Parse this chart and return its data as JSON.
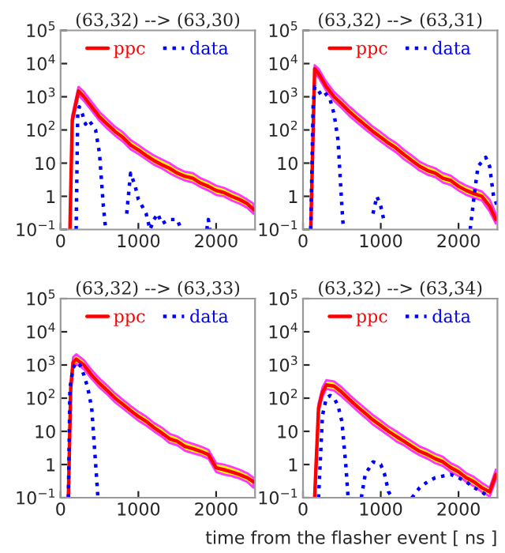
{
  "chart_data": [
    {
      "type": "line",
      "title": "(63,32) --> (63,30)",
      "log": "y",
      "xlim": [
        0,
        2500
      ],
      "ylim": [
        0.1,
        100000
      ],
      "xticks": [
        0,
        1000,
        2000
      ],
      "yticks": [
        {
          "value": 0.1,
          "label": "10$^{−1}$"
        },
        {
          "value": 1,
          "label": "1"
        },
        {
          "value": 10,
          "label": "10"
        },
        {
          "value": 100,
          "label": "10$^{2}$"
        },
        {
          "value": 1000,
          "label": "10$^{3}$"
        },
        {
          "value": 10000,
          "label": "10$^{4}$"
        },
        {
          "value": 100000,
          "label": "10$^{5}$"
        }
      ],
      "legend": "top",
      "grid": false,
      "series": [
        {
          "name": "ppc",
          "color": "#ff0000",
          "line_style": "solid",
          "x": [
            120,
            150,
            230,
            300,
            400,
            500,
            600,
            700,
            800,
            900,
            1000,
            1100,
            1200,
            1300,
            1400,
            1500,
            1600,
            1700,
            1800,
            1900,
            2000,
            2100,
            2200,
            2300,
            2400,
            2480
          ],
          "values": [
            0.1,
            200,
            1500,
            1000,
            500,
            250,
            150,
            90,
            60,
            35,
            25,
            17,
            12,
            9,
            7,
            5,
            4,
            3.5,
            2.5,
            2,
            1.5,
            1.3,
            1,
            0.8,
            0.6,
            0.4
          ],
          "upper": [
            0.1,
            280,
            2000,
            1400,
            700,
            350,
            210,
            125,
            85,
            50,
            35,
            24,
            17,
            13,
            10,
            7,
            5.5,
            5,
            3.5,
            2.8,
            2.1,
            1.8,
            1.4,
            1.1,
            0.8,
            0.6
          ],
          "lower": [
            0.1,
            150,
            1100,
            750,
            380,
            190,
            110,
            68,
            45,
            26,
            19,
            13,
            9,
            7,
            5,
            3.8,
            3,
            2.6,
            1.9,
            1.5,
            1.1,
            1,
            0.75,
            0.6,
            0.45,
            0.3
          ]
        },
        {
          "name": "data",
          "color": "#0000ff",
          "line_style": "dotted",
          "x": [
            200,
            220,
            240,
            280,
            320,
            360,
            400,
            450,
            500,
            550,
            580,
            null,
            850,
            900,
            960,
            1000,
            1050,
            1100,
            1150,
            1200,
            1250,
            1300,
            1400,
            1500,
            1550,
            null,
            1880,
            1900,
            1920
          ],
          "values": [
            0.1,
            300,
            500,
            300,
            150,
            200,
            150,
            100,
            20,
            0.5,
            0.1,
            null,
            0.3,
            5,
            2,
            0.8,
            0.5,
            0.3,
            0.1,
            0.2,
            0.3,
            0.15,
            0.2,
            0.2,
            0.1,
            null,
            0.1,
            0.2,
            0.1
          ]
        }
      ]
    },
    {
      "type": "line",
      "title": "(63,32) --> (63,31)",
      "log": "y",
      "xlim": [
        0,
        2500
      ],
      "ylim": [
        0.1,
        100000
      ],
      "xticks": [
        0,
        1000,
        2000
      ],
      "yticks": [
        {
          "value": 0.1,
          "label": "10$^{−1}$"
        },
        {
          "value": 1,
          "label": "1"
        },
        {
          "value": 10,
          "label": "10"
        },
        {
          "value": 100,
          "label": "10$^{2}$"
        },
        {
          "value": 1000,
          "label": "10$^{3}$"
        },
        {
          "value": 10000,
          "label": "10$^{4}$"
        },
        {
          "value": 100000,
          "label": "10$^{5}$"
        }
      ],
      "legend": "top",
      "grid": false,
      "series": [
        {
          "name": "ppc",
          "color": "#ff0000",
          "line_style": "solid",
          "x": [
            100,
            150,
            200,
            300,
            400,
            500,
            600,
            700,
            800,
            900,
            1000,
            1100,
            1200,
            1300,
            1400,
            1500,
            1600,
            1700,
            1800,
            1900,
            2000,
            2100,
            2200,
            2300,
            2400,
            2480
          ],
          "values": [
            0.1,
            7000,
            5000,
            2000,
            1000,
            600,
            350,
            220,
            140,
            90,
            60,
            40,
            28,
            18,
            12,
            8,
            6,
            5,
            3.5,
            3,
            2,
            1.5,
            1.2,
            1,
            0.5,
            0.2
          ],
          "upper": [
            0.1,
            9000,
            7000,
            2800,
            1400,
            850,
            500,
            310,
            200,
            125,
            85,
            56,
            40,
            25,
            17,
            11,
            8.5,
            7,
            5,
            4.2,
            2.8,
            2.1,
            1.7,
            1.4,
            0.8,
            0.3
          ],
          "lower": [
            0.1,
            5000,
            3800,
            1500,
            750,
            450,
            260,
            165,
            105,
            68,
            45,
            30,
            21,
            13,
            9,
            6,
            4.5,
            3.8,
            2.6,
            2.2,
            1.5,
            1.1,
            0.9,
            0.75,
            0.35,
            0.15
          ]
        },
        {
          "name": "data",
          "color": "#0000ff",
          "line_style": "dotted",
          "x": [
            100,
            130,
            150,
            200,
            250,
            300,
            350,
            400,
            450,
            500,
            520,
            null,
            900,
            950,
            1000,
            1050,
            null,
            2150,
            2200,
            2250,
            2350,
            2400,
            2450,
            2500
          ],
          "values": [
            0.1,
            500,
            2000,
            1500,
            1000,
            1200,
            800,
            300,
            50,
            0.5,
            0.1,
            null,
            0.3,
            1,
            0.5,
            0.15,
            null,
            0.1,
            1,
            8,
            15,
            8,
            1,
            0.5
          ]
        }
      ]
    },
    {
      "type": "line",
      "title": "(63,32) --> (63,33)",
      "log": "y",
      "xlim": [
        0,
        2500
      ],
      "ylim": [
        0.1,
        100000
      ],
      "xticks": [
        0,
        1000,
        2000
      ],
      "yticks": [
        {
          "value": 0.1,
          "label": "10$^{−1}$"
        },
        {
          "value": 1,
          "label": "1"
        },
        {
          "value": 10,
          "label": "10"
        },
        {
          "value": 100,
          "label": "10$^{2}$"
        },
        {
          "value": 1000,
          "label": "10$^{3}$"
        },
        {
          "value": 10000,
          "label": "10$^{4}$"
        },
        {
          "value": 100000,
          "label": "10$^{5}$"
        }
      ],
      "legend": "top",
      "grid": false,
      "series": [
        {
          "name": "ppc",
          "color": "#ff0000",
          "line_style": "solid",
          "x": [
            100,
            130,
            160,
            200,
            300,
            400,
            500,
            600,
            700,
            800,
            900,
            1000,
            1100,
            1200,
            1300,
            1400,
            1500,
            1600,
            1700,
            1800,
            1900,
            2000,
            2100,
            2200,
            2300,
            2400,
            2480
          ],
          "values": [
            0.1,
            200,
            1200,
            1500,
            1000,
            500,
            280,
            170,
            100,
            65,
            42,
            28,
            20,
            13,
            9,
            6,
            5,
            3.5,
            3,
            2.5,
            2,
            0.8,
            0.7,
            0.6,
            0.5,
            0.4,
            0.3
          ],
          "upper": [
            0.1,
            280,
            1700,
            2100,
            1400,
            700,
            390,
            240,
            140,
            90,
            58,
            39,
            28,
            18,
            13,
            8.5,
            7,
            5,
            4.2,
            3.5,
            2.8,
            1.1,
            1,
            0.85,
            0.7,
            0.55,
            0.4
          ],
          "lower": [
            0.1,
            150,
            900,
            1100,
            750,
            380,
            210,
            130,
            75,
            49,
            32,
            21,
            15,
            10,
            7,
            4.5,
            3.8,
            2.6,
            2.2,
            1.9,
            1.5,
            0.6,
            0.5,
            0.45,
            0.38,
            0.3,
            0.2
          ]
        },
        {
          "name": "data",
          "color": "#0000ff",
          "line_style": "dotted",
          "x": [
            100,
            120,
            160,
            200,
            250,
            300,
            350,
            400,
            430,
            460,
            480
          ],
          "values": [
            0.1,
            200,
            800,
            1200,
            1000,
            500,
            200,
            50,
            5,
            0.5,
            0.1
          ]
        }
      ],
      "xlabel": "time from the flasher event [ ns ]"
    },
    {
      "type": "line",
      "title": "(63,32) --> (63,34)",
      "log": "y",
      "xlim": [
        0,
        2500
      ],
      "ylim": [
        0.1,
        100000
      ],
      "xticks": [
        0,
        1000,
        2000
      ],
      "yticks": [
        {
          "value": 0.1,
          "label": "10$^{−1}$"
        },
        {
          "value": 1,
          "label": "1"
        },
        {
          "value": 10,
          "label": "10"
        },
        {
          "value": 100,
          "label": "10$^{2}$"
        },
        {
          "value": 1000,
          "label": "10$^{3}$"
        },
        {
          "value": 10000,
          "label": "10$^{4}$"
        },
        {
          "value": 100000,
          "label": "10$^{5}$"
        }
      ],
      "legend": "top",
      "grid": false,
      "series": [
        {
          "name": "ppc",
          "color": "#ff0000",
          "line_style": "solid",
          "x": [
            150,
            200,
            250,
            300,
            400,
            500,
            600,
            700,
            800,
            900,
            1000,
            1100,
            1200,
            1300,
            1400,
            1500,
            1600,
            1700,
            1800,
            1900,
            2000,
            2100,
            2200,
            2300,
            2400,
            2480
          ],
          "values": [
            0.1,
            50,
            150,
            250,
            230,
            150,
            90,
            55,
            35,
            22,
            15,
            10,
            7,
            5,
            3.5,
            2.5,
            2,
            1.5,
            1.2,
            0.8,
            0.6,
            0.4,
            0.3,
            0.2,
            0.15,
            0.5
          ],
          "upper": [
            0.1,
            70,
            210,
            350,
            320,
            210,
            125,
            77,
            49,
            31,
            21,
            14,
            10,
            7,
            5,
            3.5,
            2.8,
            2.1,
            1.7,
            1.1,
            0.85,
            0.55,
            0.42,
            0.28,
            0.2,
            0.7
          ],
          "lower": [
            0.1,
            38,
            110,
            190,
            170,
            110,
            68,
            41,
            26,
            16,
            11,
            7.5,
            5,
            3.8,
            2.6,
            1.9,
            1.5,
            1.1,
            0.9,
            0.6,
            0.45,
            0.3,
            0.22,
            0.15,
            0.11,
            0.35
          ]
        },
        {
          "name": "data",
          "color": "#0000ff",
          "line_style": "dotted",
          "x": [
            200,
            250,
            300,
            350,
            400,
            450,
            500,
            550,
            580,
            null,
            750,
            800,
            900,
            1000,
            1050,
            1100,
            1150,
            null,
            1400,
            1500,
            1600,
            1700,
            1800,
            1900,
            2000,
            2100,
            2200,
            2300,
            2400
          ],
          "values": [
            0.1,
            30,
            100,
            120,
            100,
            60,
            20,
            1,
            0.1,
            null,
            0.1,
            0.5,
            1.2,
            1,
            0.5,
            0.15,
            0.1,
            null,
            0.1,
            0.2,
            0.3,
            0.4,
            0.45,
            0.5,
            0.4,
            0.3,
            0.2,
            0.15,
            0.1
          ]
        }
      ]
    }
  ]
}
